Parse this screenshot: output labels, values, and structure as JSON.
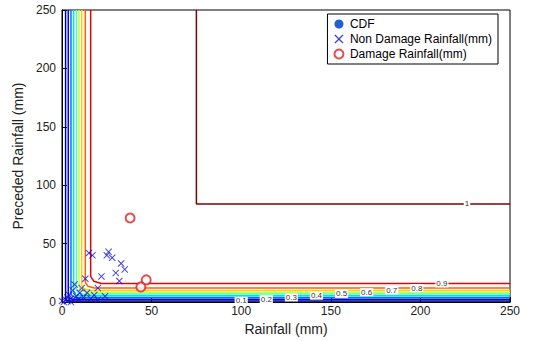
{
  "chart_data": {
    "type": "contour",
    "x_label": "Rainfall (mm)",
    "y_label": "Preceded Rainfall (mm)",
    "xlim": [
      0,
      250
    ],
    "ylim": [
      0,
      250
    ],
    "xticks": [
      0,
      50,
      100,
      150,
      200,
      250
    ],
    "yticks": [
      0,
      50,
      100,
      150,
      200,
      250
    ],
    "grid": false,
    "legend": "upper right",
    "series": [
      {
        "name": "CDF",
        "type": "contour",
        "color": "#1f5fd0",
        "levels": [
          {
            "level": 0.1,
            "label": "0.1",
            "color": "#00008f",
            "x": [
              2,
              2,
              2.6,
              4,
              250
            ],
            "y": [
              250,
              3,
              1.6,
              1,
              1
            ]
          },
          {
            "level": 0.2,
            "label": "0.2",
            "color": "#0000ff",
            "x": [
              3.5,
              3.5,
              4.3,
              6,
              250
            ],
            "y": [
              250,
              5,
              3.3,
              2.5,
              2.5
            ]
          },
          {
            "level": 0.3,
            "label": "0.3",
            "color": "#0070ff",
            "x": [
              5,
              5,
              5.9,
              8,
              250
            ],
            "y": [
              250,
              7,
              4.9,
              4,
              4
            ]
          },
          {
            "level": 0.4,
            "label": "0.4",
            "color": "#00dfff",
            "x": [
              6.5,
              6.5,
              7.4,
              9.5,
              250
            ],
            "y": [
              250,
              8.5,
              6.4,
              5.5,
              5.5
            ]
          },
          {
            "level": 0.5,
            "label": "0.5",
            "color": "#50ffaf",
            "x": [
              8,
              8,
              9,
              11.5,
              250
            ],
            "y": [
              250,
              10.5,
              8,
              7,
              7
            ]
          },
          {
            "level": 0.6,
            "label": "0.6",
            "color": "#bfff40",
            "x": [
              9.5,
              9.5,
              10.7,
              13.5,
              250
            ],
            "y": [
              250,
              12.5,
              9.7,
              8.5,
              8.5
            ]
          },
          {
            "level": 0.7,
            "label": "0.7",
            "color": "#ffd000",
            "x": [
              11,
              11,
              12.4,
              15.5,
              250
            ],
            "y": [
              250,
              14.5,
              11.4,
              10,
              10
            ]
          },
          {
            "level": 0.8,
            "label": "0.8",
            "color": "#ff6000",
            "x": [
              13,
              13,
              14.5,
              18,
              250
            ],
            "y": [
              250,
              17,
              13.5,
              12,
              12
            ]
          },
          {
            "level": 0.9,
            "label": "0.9",
            "color": "#ef0000",
            "x": [
              16,
              16,
              17.8,
              22,
              250
            ],
            "y": [
              250,
              22,
              17.8,
              16,
              16
            ]
          },
          {
            "level": 1,
            "label": "1",
            "color": "#800000",
            "x": [
              75,
              75,
              250
            ],
            "y": [
              250,
              84,
              84
            ]
          }
        ]
      },
      {
        "name": "Non Damage Rainfall(mm)",
        "type": "scatter",
        "marker": "x",
        "color": "#1010d0",
        "x": [
          15,
          17,
          13,
          25,
          26,
          28,
          30,
          33,
          35,
          32,
          22,
          20,
          8,
          5,
          3,
          10,
          12,
          6,
          2,
          4,
          9,
          11,
          7,
          14,
          16,
          18,
          1,
          3,
          0,
          5,
          20,
          24
        ],
        "y": [
          42,
          40,
          20,
          40,
          43,
          38,
          25,
          33,
          28,
          18,
          22,
          12,
          5,
          3,
          1,
          8,
          4,
          10,
          2,
          6,
          2,
          12,
          15,
          8,
          3,
          6,
          0,
          4,
          1,
          0,
          2,
          5
        ]
      },
      {
        "name": "Damage Rainfall(mm)",
        "type": "scatter",
        "marker": "circle",
        "color": "#e02020",
        "x": [
          38,
          47,
          44
        ],
        "y": [
          72,
          19,
          13
        ]
      }
    ]
  }
}
